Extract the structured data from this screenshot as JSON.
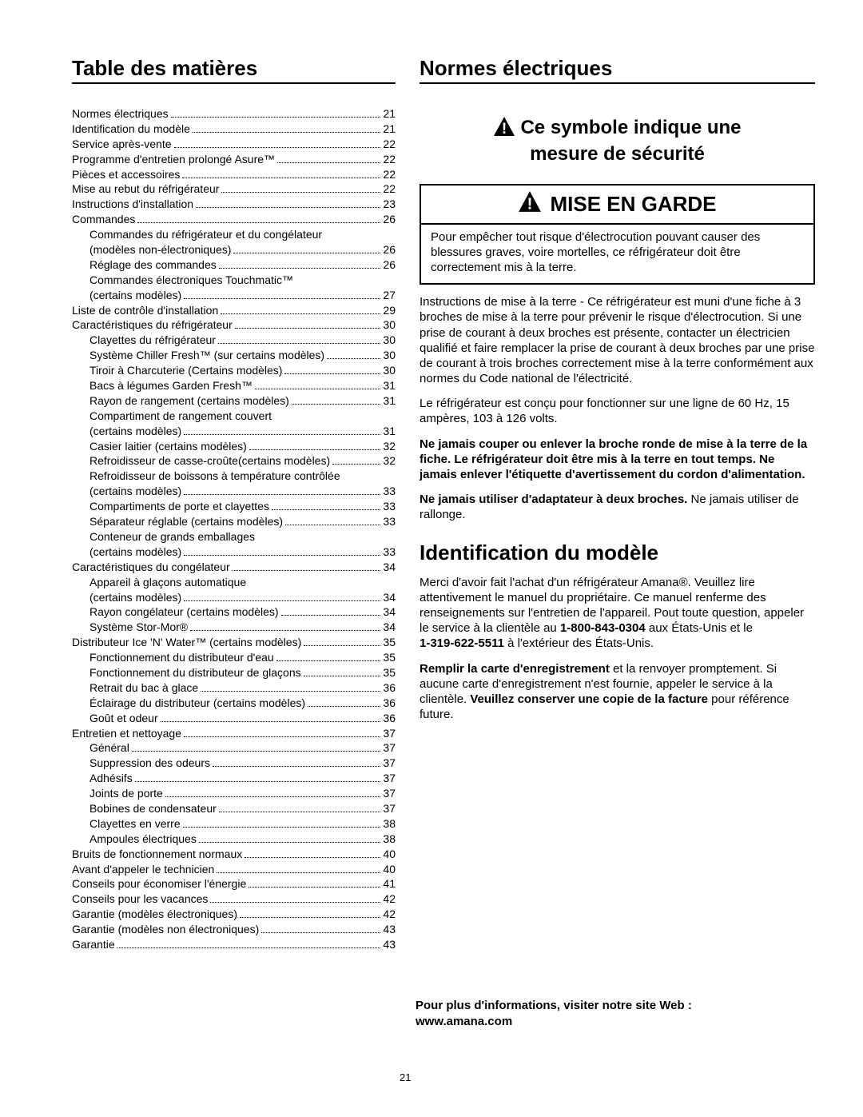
{
  "page_number": "21",
  "left": {
    "title": "Table des matières",
    "items": [
      {
        "label": "Normes électriques",
        "page": "21",
        "sub": false
      },
      {
        "label": "Identification du modèle",
        "page": "21",
        "sub": false
      },
      {
        "label": "Service après-vente",
        "page": "22",
        "sub": false
      },
      {
        "label": "Programme d'entretien prolongé Asure™",
        "page": "22",
        "sub": false
      },
      {
        "label": "Pièces et accessoires",
        "page": "22",
        "sub": false
      },
      {
        "label": "Mise au rebut du réfrigérateur",
        "page": "22",
        "sub": false
      },
      {
        "label": "Instructions d'installation",
        "page": "23",
        "sub": false
      },
      {
        "label": "Commandes",
        "page": "26",
        "sub": false
      },
      {
        "label": "Commandes du réfrigérateur et du congélateur",
        "page": "",
        "sub": true,
        "nopage": true
      },
      {
        "label": "(modèles non-électroniques)",
        "page": "26",
        "sub": true
      },
      {
        "label": "Réglage des commandes",
        "page": "26",
        "sub": true
      },
      {
        "label": "Commandes électroniques Touchmatic™",
        "page": "",
        "sub": true,
        "nopage": true
      },
      {
        "label": "(certains modèles)",
        "page": "27",
        "sub": true
      },
      {
        "label": "Liste de contrôle d'installation",
        "page": "29",
        "sub": false
      },
      {
        "label": "Caractéristiques du réfrigérateur",
        "page": "30",
        "sub": false
      },
      {
        "label": "Clayettes du réfrigérateur",
        "page": "30",
        "sub": true
      },
      {
        "label": "Système Chiller Fresh™ (sur certains modèles)",
        "page": "30",
        "sub": true
      },
      {
        "label": "Tiroir à Charcuterie (Certains modèles)",
        "page": "30",
        "sub": true
      },
      {
        "label": "Bacs à légumes Garden Fresh™",
        "page": "31",
        "sub": true
      },
      {
        "label": "Rayon de rangement (certains modèles)",
        "page": "31",
        "sub": true
      },
      {
        "label": "Compartiment de rangement couvert",
        "page": "",
        "sub": true,
        "nopage": true
      },
      {
        "label": "(certains modèles)",
        "page": "31",
        "sub": true
      },
      {
        "label": "Casier laitier (certains modèles)",
        "page": "32",
        "sub": true
      },
      {
        "label": "Refroidisseur de casse-croûte(certains modèles)",
        "page": "32",
        "sub": true
      },
      {
        "label": "Refroidisseur de boissons à température contrôlée",
        "page": "",
        "sub": true,
        "nopage": true
      },
      {
        "label": "(certains modèles)",
        "page": "33",
        "sub": true
      },
      {
        "label": "Compartiments de porte et clayettes",
        "page": "33",
        "sub": true
      },
      {
        "label": "Séparateur réglable (certains modèles)",
        "page": "33",
        "sub": true
      },
      {
        "label": "Conteneur de grands emballages",
        "page": "",
        "sub": true,
        "nopage": true
      },
      {
        "label": "(certains modèles)",
        "page": "33",
        "sub": true
      },
      {
        "label": "Caractéristiques du congélateur",
        "page": "34",
        "sub": false
      },
      {
        "label": "Appareil à glaçons automatique",
        "page": "",
        "sub": true,
        "nopage": true
      },
      {
        "label": "(certains modèles)",
        "page": "34",
        "sub": true
      },
      {
        "label": "Rayon congélateur (certains modèles)",
        "page": "34",
        "sub": true
      },
      {
        "label": "Système Stor-Mor®",
        "page": "34",
        "sub": true
      },
      {
        "label": "Distributeur Ice 'N' Water™ (certains modèles)",
        "page": "35",
        "sub": false
      },
      {
        "label": "Fonctionnement du distributeur d'eau",
        "page": "35",
        "sub": true
      },
      {
        "label": "Fonctionnement du distributeur de glaçons",
        "page": "35",
        "sub": true
      },
      {
        "label": "Retrait du bac à glace",
        "page": "36",
        "sub": true
      },
      {
        "label": "Éclairage du distributeur (certains modèles)",
        "page": "36",
        "sub": true
      },
      {
        "label": "Goût et odeur",
        "page": "36",
        "sub": true
      },
      {
        "label": "Entretien et nettoyage",
        "page": "37",
        "sub": false
      },
      {
        "label": "Général",
        "page": "37",
        "sub": true
      },
      {
        "label": "Suppression des odeurs",
        "page": "37",
        "sub": true
      },
      {
        "label": "Adhésifs",
        "page": "37",
        "sub": true
      },
      {
        "label": "Joints de porte",
        "page": "37",
        "sub": true
      },
      {
        "label": "Bobines de condensateur",
        "page": "37",
        "sub": true
      },
      {
        "label": "Clayettes en verre",
        "page": "38",
        "sub": true
      },
      {
        "label": "Ampoules électriques",
        "page": "38",
        "sub": true
      },
      {
        "label": "Bruits de fonctionnement normaux",
        "page": "40",
        "sub": false
      },
      {
        "label": "Avant d'appeler le technicien",
        "page": "40",
        "sub": false
      },
      {
        "label": "Conseils pour économiser l'énergie",
        "page": "41",
        "sub": false
      },
      {
        "label": "Conseils pour les vacances",
        "page": "42",
        "sub": false
      },
      {
        "label": "Garantie (modèles électroniques)",
        "page": "42",
        "sub": false
      },
      {
        "label": "Garantie (modèles non électroniques)",
        "page": "43",
        "sub": false
      },
      {
        "label": "Garantie",
        "page": "43",
        "sub": false
      }
    ]
  },
  "right": {
    "title": "Normes électriques",
    "safety_line1": "Ce symbole indique une",
    "safety_line2": "mesure de sécurité",
    "garde_title": "MISE EN GARDE",
    "garde_body": "Pour empêcher tout risque d'électrocution pouvant causer des blessures graves, voire mortelles, ce réfrigérateur doit être correctement mis à la terre.",
    "para1": "Instructions de mise à la terre - Ce réfrigérateur est muni d'une fiche à 3 broches de mise à la terre pour prévenir le risque d'électrocution. Si une prise de courant à deux broches est présente, contacter un électricien qualifié et faire remplacer la prise de courant à deux broches par une prise de courant à trois broches correctement mise à la terre conformément aux normes du Code national de l'électricité.",
    "para2": "Le réfrigérateur est conçu pour fonctionner sur une ligne de 60 Hz, 15 ampères, 103 à 126 volts.",
    "para3_bold": "Ne jamais couper ou enlever la broche ronde de mise à la terre de la fiche. Le réfrigérateur doit être mis à la terre en tout temps. Ne jamais enlever l'étiquette d'avertissement du cordon d'alimentation.",
    "para4_bold": "Ne jamais utiliser d'adaptateur à deux broches.",
    "para4_rest": " Ne jamais utiliser de rallonge.",
    "ident_title": "Identification du modèle",
    "ident_p1a": "Merci d'avoir fait l'achat d'un réfrigérateur Amana®. Veuillez lire attentivement le manuel du propriétaire. Ce manuel renferme des renseignements sur l'entretien de l'appareil. Pout toute question, appeler le service à la clientèle au ",
    "ident_phone1": "1-800-843-0304",
    "ident_p1b": " aux États-Unis et le ",
    "ident_phone2": "1-319-622-5511",
    "ident_p1c": " à l'extérieur des États-Unis.",
    "ident_p2a": "Remplir la carte d'enregistrement",
    "ident_p2b": " et la renvoyer promptement. Si aucune carte d'enregistrement n'est fournie, appeler le service à la clientèle. ",
    "ident_p2c": "Veuillez conserver une copie de la facture",
    "ident_p2d": " pour référence future.",
    "footer": "Pour plus d'informations, visiter notre site Web : www.amana.com"
  }
}
